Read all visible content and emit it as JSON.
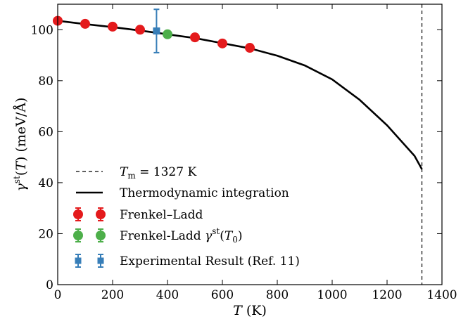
{
  "chart_data": {
    "type": "line",
    "xlabel": "T (K)",
    "ylabel": "γst(T) (meV/Å)",
    "xlim": [
      0,
      1400
    ],
    "ylim": [
      0,
      110
    ],
    "xticks": [
      "0",
      "200",
      "400",
      "600",
      "800",
      "1000",
      "1200",
      "1400"
    ],
    "yticks": [
      "0",
      "20",
      "40",
      "60",
      "80",
      "100"
    ],
    "xtick_values": [
      0,
      200,
      400,
      600,
      800,
      1000,
      1200,
      1400
    ],
    "ytick_values": [
      0,
      20,
      40,
      60,
      80,
      100
    ],
    "grid": false,
    "legend": "bottom-left",
    "melting": {
      "label": "Tm = 1327 K",
      "x": 1327
    },
    "series": [
      {
        "name": "Thermodynamic integration",
        "kind": "line",
        "color": "#000000",
        "x": [
          0,
          100,
          200,
          300,
          400,
          500,
          600,
          700,
          800,
          900,
          1000,
          1100,
          1200,
          1300,
          1327
        ],
        "y": [
          103.5,
          102.2,
          101.0,
          99.7,
          98.2,
          96.7,
          94.7,
          92.7,
          89.8,
          86.0,
          80.5,
          72.5,
          62.5,
          50.5,
          45.3
        ]
      },
      {
        "name": "Frenkel–Ladd",
        "kind": "errorbar-circle",
        "color": "#e41a1c",
        "x": [
          0,
          100,
          200,
          300,
          500,
          600,
          700
        ],
        "y": [
          103.5,
          102.3,
          101.2,
          100.0,
          97.0,
          94.6,
          92.9
        ]
      },
      {
        "name": "Frenkel-Ladd γst(T0)",
        "kind": "errorbar-circle",
        "color": "#4daf4a",
        "x": [
          400
        ],
        "y": [
          98.2
        ]
      },
      {
        "name": "Experimental Result (Ref. 11)",
        "kind": "errorbar-square",
        "color": "#377eb8",
        "x": [
          360
        ],
        "y": [
          99.5
        ],
        "yerr": [
          8.5
        ]
      }
    ]
  }
}
